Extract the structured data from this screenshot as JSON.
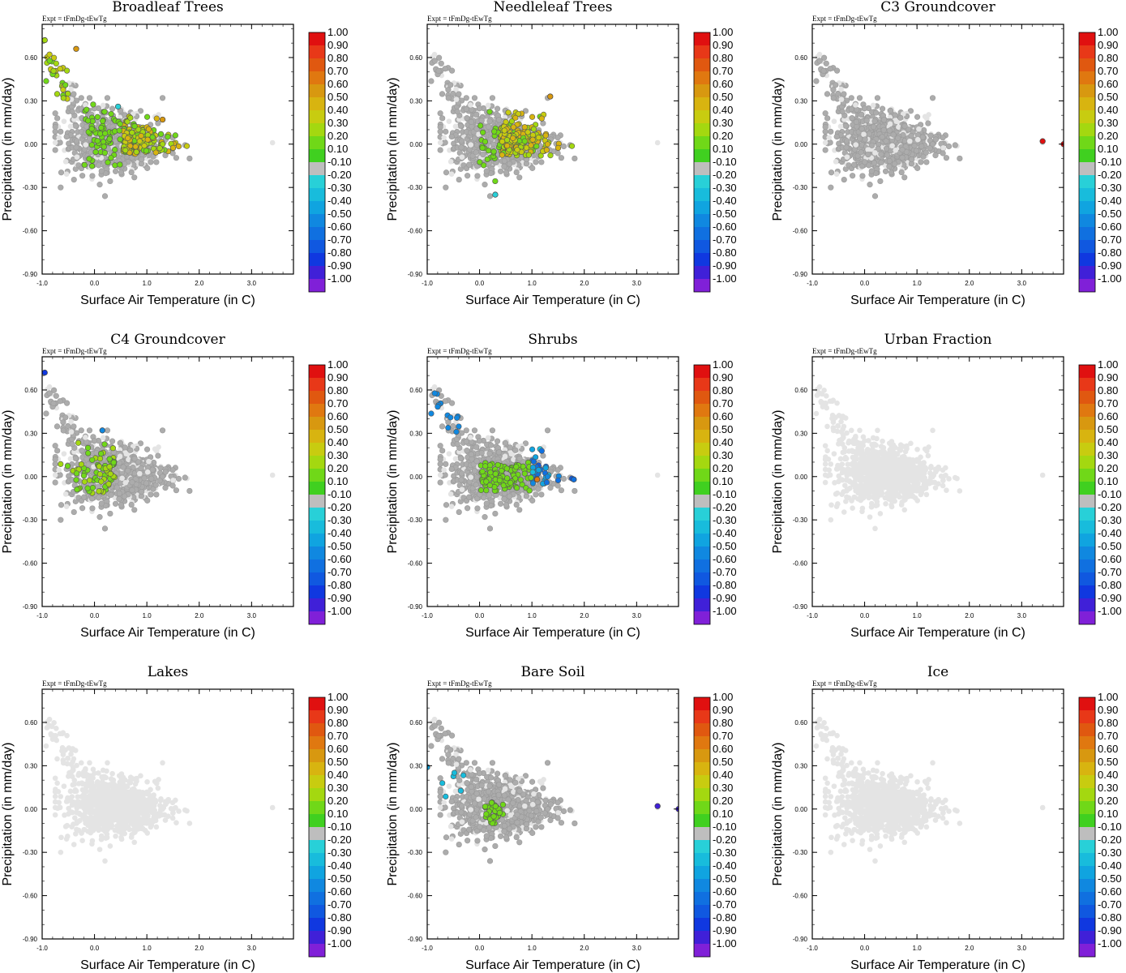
{
  "figure": {
    "expt_label": "Expt = tFmDg-tEwTg",
    "xlabel": "Surface Air Temperature (in C)",
    "ylabel": "Precipitation (in mm/day)",
    "xticks": [
      "-1.0",
      "0.0",
      "1.0",
      "2.0",
      "3.0"
    ],
    "yticks": [
      "0.60",
      "0.30",
      "0.00",
      "-0.30",
      "-0.60",
      "-0.90"
    ],
    "colorbar_labels": [
      "1.00",
      "0.90",
      "0.80",
      "0.70",
      "0.60",
      "0.50",
      "0.40",
      "0.30",
      "0.20",
      "0.10",
      "-0.10",
      "-0.20",
      "-0.30",
      "-0.40",
      "-0.50",
      "-0.60",
      "-0.70",
      "-0.80",
      "-0.90",
      "-1.00"
    ],
    "colorbar_colors": [
      "#e01010",
      "#e83818",
      "#e05810",
      "#e07810",
      "#d89810",
      "#d8b410",
      "#c8cc10",
      "#a4d810",
      "#70d818",
      "#40d020",
      "#bebebe",
      "#28d0d8",
      "#18bcdc",
      "#10a4e0",
      "#1088e0",
      "#1070e0",
      "#1058e0",
      "#1038e0",
      "#4020d8",
      "#8020d8"
    ],
    "background_color": "#e4e4e4",
    "neutral_color": "#acacac"
  },
  "chart_data": [
    {
      "type": "scatter",
      "title": "Broadleaf Trees",
      "xlabel": "Surface Air Temperature (in C)",
      "ylabel": "Precipitation (in mm/day)",
      "xlim": [
        -1.0,
        3.8
      ],
      "ylim": [
        -0.9,
        0.83
      ],
      "highlight": "broadleaf",
      "notable_points": [
        {
          "x": -0.95,
          "y": 0.72,
          "value": 0.3
        },
        {
          "x": -0.35,
          "y": 0.66,
          "value": 0.6
        },
        {
          "x": 1.3,
          "y": 0.17,
          "value": 0.6
        },
        {
          "x": 0.45,
          "y": 0.26,
          "value": -0.2
        }
      ]
    },
    {
      "type": "scatter",
      "title": "Needleleaf Trees",
      "xlabel": "Surface Air Temperature (in C)",
      "ylabel": "Precipitation (in mm/day)",
      "xlim": [
        -1.0,
        3.8
      ],
      "ylim": [
        -0.9,
        0.83
      ],
      "highlight": "needleleaf",
      "notable_points": [
        {
          "x": 0.3,
          "y": -0.35,
          "value": -0.2
        },
        {
          "x": 1.35,
          "y": 0.33,
          "value": 0.6
        }
      ]
    },
    {
      "type": "scatter",
      "title": "C3 Groundcover",
      "xlabel": "Surface Air Temperature (in C)",
      "ylabel": "Precipitation (in mm/day)",
      "xlim": [
        -1.0,
        3.8
      ],
      "ylim": [
        -0.9,
        0.83
      ],
      "highlight": "c3",
      "notable_points": [
        {
          "x": 3.4,
          "y": 0.02,
          "value": 1.0
        },
        {
          "x": 3.8,
          "y": 0.0,
          "value": 1.0
        }
      ]
    },
    {
      "type": "scatter",
      "title": "C4 Groundcover",
      "xlabel": "Surface Air Temperature (in C)",
      "ylabel": "Precipitation (in mm/day)",
      "xlim": [
        -1.0,
        3.8
      ],
      "ylim": [
        -0.9,
        0.83
      ],
      "highlight": "c4",
      "notable_points": [
        {
          "x": -0.95,
          "y": 0.72,
          "value": -0.8
        },
        {
          "x": 0.15,
          "y": 0.32,
          "value": -0.5
        }
      ]
    },
    {
      "type": "scatter",
      "title": "Shrubs",
      "xlabel": "Surface Air Temperature (in C)",
      "ylabel": "Precipitation (in mm/day)",
      "xlim": [
        -1.0,
        3.8
      ],
      "ylim": [
        -0.9,
        0.83
      ],
      "highlight": "shrubs",
      "notable_points": [
        {
          "x": 1.1,
          "y": -0.02,
          "value": 0.7
        },
        {
          "x": 1.8,
          "y": -0.02,
          "value": -0.6
        }
      ]
    },
    {
      "type": "scatter",
      "title": "Urban Fraction",
      "xlabel": "Surface Air Temperature (in C)",
      "ylabel": "Precipitation (in mm/day)",
      "xlim": [
        -1.0,
        3.8
      ],
      "ylim": [
        -0.9,
        0.83
      ],
      "highlight": "none",
      "notable_points": []
    },
    {
      "type": "scatter",
      "title": "Lakes",
      "xlabel": "Surface Air Temperature (in C)",
      "ylabel": "Precipitation (in mm/day)",
      "xlim": [
        -1.0,
        3.8
      ],
      "ylim": [
        -0.9,
        0.83
      ],
      "highlight": "none",
      "notable_points": []
    },
    {
      "type": "scatter",
      "title": "Bare Soil",
      "xlabel": "Surface Air Temperature (in C)",
      "ylabel": "Precipitation (in mm/day)",
      "xlim": [
        -1.0,
        3.8
      ],
      "ylim": [
        -0.9,
        0.83
      ],
      "highlight": "baresoil",
      "notable_points": [
        {
          "x": 3.4,
          "y": 0.02,
          "value": -0.9
        },
        {
          "x": 3.8,
          "y": 0.0,
          "value": -0.9
        },
        {
          "x": -1.0,
          "y": 0.29,
          "value": -0.4
        }
      ]
    },
    {
      "type": "scatter",
      "title": "Ice",
      "xlabel": "Surface Air Temperature (in C)",
      "ylabel": "Precipitation (in mm/day)",
      "xlim": [
        -1.0,
        3.8
      ],
      "ylim": [
        -0.9,
        0.83
      ],
      "highlight": "none",
      "notable_points": []
    }
  ]
}
